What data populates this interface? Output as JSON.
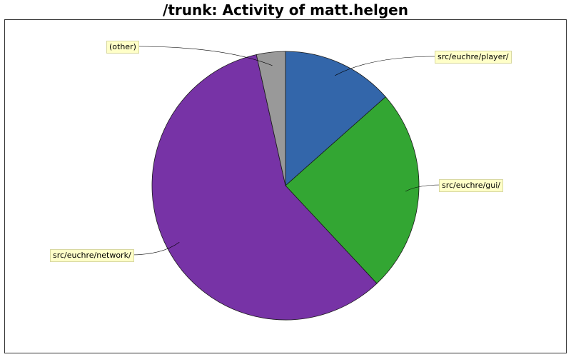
{
  "chart_data": {
    "type": "pie",
    "title": "/trunk: Activity of matt.helgen",
    "slices": [
      {
        "label": "src/euchre/player/",
        "value": 13.5,
        "color": "#3366aa"
      },
      {
        "label": "src/euchre/gui/",
        "value": 24.5,
        "color": "#33a633"
      },
      {
        "label": "src/euchre/network/",
        "value": 58.5,
        "color": "#7733a6"
      },
      {
        "label": "(other)",
        "value": 3.5,
        "color": "#999999"
      }
    ],
    "legend": "none",
    "grid": false
  }
}
